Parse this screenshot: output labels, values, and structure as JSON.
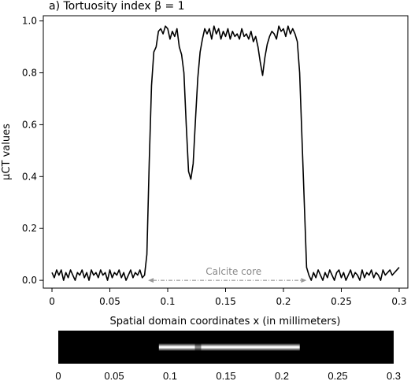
{
  "chart_data": {
    "type": "line",
    "title": "a) Tortuosity index β = 1",
    "xlabel": "Spatial domain coordinates x (in millimeters)",
    "ylabel": "µCT values",
    "xlim": [
      -0.0075,
      0.3075
    ],
    "ylim": [
      -0.03,
      1.02
    ],
    "x_ticks": [
      0,
      0.05,
      0.1,
      0.15,
      0.2,
      0.25,
      0.3
    ],
    "x_tick_labels": [
      "0",
      "0.05",
      "0.1",
      "0.15",
      "0.2",
      "0.25",
      "0.3"
    ],
    "y_ticks": [
      0,
      0.2,
      0.4,
      0.6,
      0.8,
      1.0
    ],
    "y_tick_labels": [
      "0.0",
      "0.2",
      "0.4",
      "0.6",
      "0.8",
      "1.0"
    ],
    "grid": false,
    "line_color": "#000000",
    "series": [
      {
        "x": [
          0,
          0.002,
          0.004,
          0.006,
          0.008,
          0.01,
          0.012,
          0.014,
          0.016,
          0.018,
          0.02,
          0.022,
          0.024,
          0.026,
          0.028,
          0.03,
          0.032,
          0.034,
          0.036,
          0.038,
          0.04,
          0.042,
          0.044,
          0.046,
          0.048,
          0.05,
          0.052,
          0.054,
          0.056,
          0.058,
          0.06,
          0.062,
          0.064,
          0.066,
          0.068,
          0.07,
          0.072,
          0.074,
          0.076,
          0.078,
          0.08,
          0.082,
          0.084,
          0.086,
          0.088,
          0.09,
          0.092,
          0.094,
          0.096,
          0.098,
          0.1,
          0.102,
          0.104,
          0.106,
          0.108,
          0.11,
          0.112,
          0.114,
          0.116,
          0.118,
          0.12,
          0.122,
          0.124,
          0.126,
          0.128,
          0.13,
          0.132,
          0.134,
          0.136,
          0.138,
          0.14,
          0.142,
          0.144,
          0.146,
          0.148,
          0.15,
          0.152,
          0.154,
          0.156,
          0.158,
          0.16,
          0.162,
          0.164,
          0.166,
          0.168,
          0.17,
          0.172,
          0.174,
          0.176,
          0.178,
          0.18,
          0.182,
          0.184,
          0.186,
          0.188,
          0.19,
          0.192,
          0.194,
          0.196,
          0.198,
          0.2,
          0.202,
          0.204,
          0.206,
          0.208,
          0.21,
          0.212,
          0.214,
          0.216,
          0.218,
          0.22,
          0.222,
          0.224,
          0.226,
          0.228,
          0.23,
          0.232,
          0.234,
          0.236,
          0.238,
          0.24,
          0.242,
          0.244,
          0.246,
          0.248,
          0.25,
          0.252,
          0.254,
          0.256,
          0.258,
          0.26,
          0.262,
          0.264,
          0.266,
          0.268,
          0.27,
          0.272,
          0.274,
          0.276,
          0.278,
          0.28,
          0.282,
          0.284,
          0.286,
          0.288,
          0.29,
          0.292,
          0.294,
          0.296,
          0.298,
          0.3
        ],
        "y": [
          0.03,
          0.01,
          0.04,
          0.02,
          0.04,
          0.0,
          0.03,
          0.01,
          0.04,
          0.02,
          0.0,
          0.03,
          0.02,
          0.04,
          0.01,
          0.03,
          0.0,
          0.04,
          0.02,
          0.03,
          0.01,
          0.04,
          0.02,
          0.03,
          0.0,
          0.04,
          0.01,
          0.03,
          0.02,
          0.04,
          0.01,
          0.03,
          0.0,
          0.02,
          0.04,
          0.01,
          0.03,
          0.02,
          0.04,
          0.01,
          0.02,
          0.1,
          0.45,
          0.75,
          0.88,
          0.9,
          0.96,
          0.97,
          0.95,
          0.98,
          0.97,
          0.93,
          0.96,
          0.94,
          0.97,
          0.9,
          0.87,
          0.8,
          0.6,
          0.42,
          0.39,
          0.45,
          0.62,
          0.78,
          0.88,
          0.93,
          0.97,
          0.95,
          0.97,
          0.93,
          0.98,
          0.95,
          0.97,
          0.93,
          0.96,
          0.94,
          0.97,
          0.93,
          0.96,
          0.94,
          0.95,
          0.93,
          0.97,
          0.94,
          0.95,
          0.93,
          0.96,
          0.92,
          0.94,
          0.9,
          0.84,
          0.79,
          0.86,
          0.91,
          0.94,
          0.96,
          0.95,
          0.93,
          0.98,
          0.96,
          0.97,
          0.94,
          0.98,
          0.95,
          0.97,
          0.95,
          0.92,
          0.8,
          0.55,
          0.3,
          0.05,
          0.02,
          0.0,
          0.03,
          0.01,
          0.04,
          0.02,
          0.0,
          0.03,
          0.01,
          0.04,
          0.02,
          0.0,
          0.03,
          0.04,
          0.01,
          0.03,
          0.0,
          0.02,
          0.04,
          0.01,
          0.03,
          0.02,
          0.0,
          0.04,
          0.01,
          0.03,
          0.02,
          0.04,
          0.01,
          0.03,
          0.02,
          0.0,
          0.04,
          0.02,
          0.03,
          0.04,
          0.02,
          0.03,
          0.04,
          0.05
        ]
      }
    ],
    "annotation": {
      "text": "Calcite core",
      "x_start": 0.083,
      "x_end": 0.22,
      "y": 0.0,
      "color": "#888888"
    },
    "image_strip": {
      "x_ticks": [
        0,
        0.05,
        0.1,
        0.15,
        0.2,
        0.25,
        0.3
      ],
      "x_tick_labels": [
        "0",
        "0.05",
        "0.1",
        "0.15",
        "0.2",
        "0.25",
        "0.3"
      ],
      "bright_start": 0.09,
      "bright_end": 0.216,
      "dim_at": 0.125,
      "background": "#000000"
    }
  }
}
